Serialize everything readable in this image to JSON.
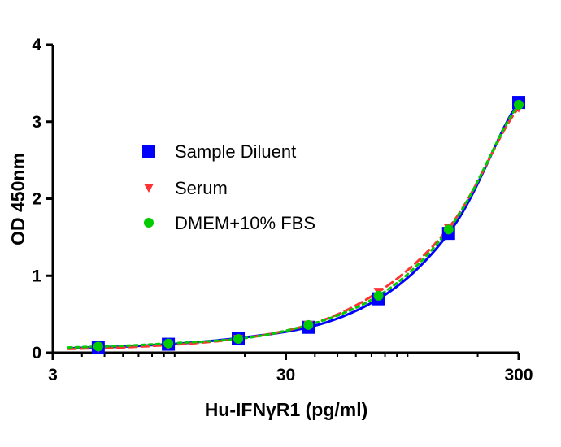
{
  "chart_data": {
    "type": "scatter",
    "title": "",
    "xlabel": "Hu-IFNγR1 (pg/ml)",
    "ylabel": "OD 450nm",
    "x_scale": "log",
    "xlim": [
      3,
      300
    ],
    "ylim": [
      0,
      4
    ],
    "x_ticks": [
      3,
      30,
      300
    ],
    "x_tick_labels": [
      "3",
      "30",
      "300"
    ],
    "y_ticks": [
      0,
      1,
      2,
      3,
      4
    ],
    "y_tick_labels": [
      "0",
      "1",
      "2",
      "3",
      "4"
    ],
    "grid": false,
    "legend_position": "center-left",
    "series": [
      {
        "name": "Sample Diluent",
        "marker": "square",
        "color": "#0000ff",
        "line_style": "solid",
        "x": [
          4.7,
          9.4,
          18.75,
          37.5,
          75,
          150,
          300
        ],
        "y": [
          0.07,
          0.11,
          0.19,
          0.33,
          0.7,
          1.55,
          3.25
        ]
      },
      {
        "name": "Serum",
        "marker": "triangle-down",
        "color": "#ff3333",
        "line_style": "dashed",
        "x": [
          4.7,
          9.4,
          18.75,
          37.5,
          75,
          150,
          300
        ],
        "y": [
          0.06,
          0.1,
          0.18,
          0.36,
          0.79,
          1.62,
          3.18
        ]
      },
      {
        "name": "DMEM+10% FBS",
        "marker": "circle",
        "color": "#00cc00",
        "line_style": "dotted",
        "x": [
          4.7,
          9.4,
          18.75,
          37.5,
          75,
          150,
          300
        ],
        "y": [
          0.08,
          0.12,
          0.18,
          0.36,
          0.74,
          1.6,
          3.22
        ]
      }
    ]
  }
}
